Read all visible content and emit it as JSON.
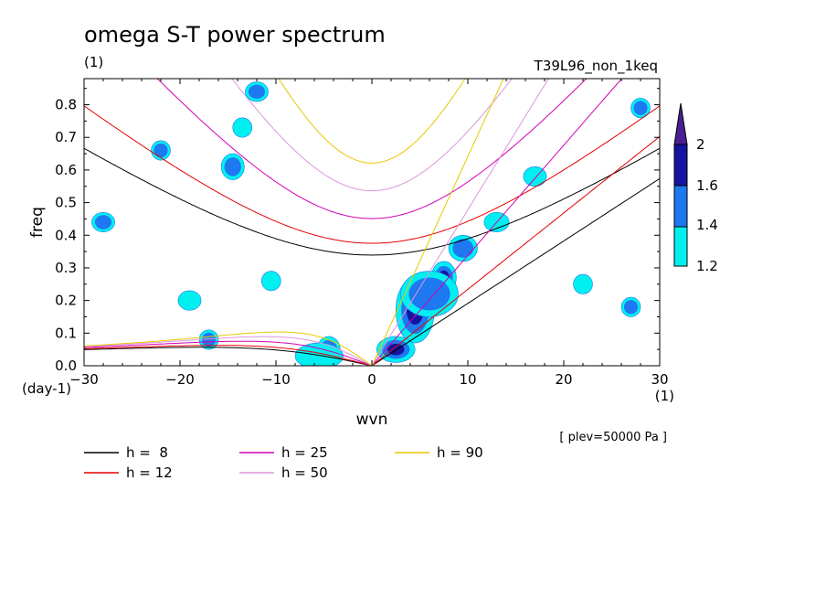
{
  "chart_data": {
    "type": "heatmap",
    "title": "omega S-T power spectrum",
    "subtitle_left": "(1)",
    "subtitle_right": "T39L96_non_1keq",
    "xlabel": "wvn",
    "xunit": "(1)",
    "ylabel": "freq",
    "yunit": "(day-1)",
    "xlim": [
      -30,
      30
    ],
    "ylim": [
      0,
      0.88
    ],
    "xticks": [
      -30,
      -20,
      -10,
      0,
      10,
      20,
      30
    ],
    "yticks": [
      0.0,
      0.1,
      0.2,
      0.3,
      0.4,
      0.5,
      0.6,
      0.7,
      0.8
    ],
    "annotation": "[ plev=50000 Pa ]",
    "colorbar": {
      "levels": [
        1.2,
        1.4,
        1.6,
        2
      ],
      "colors": [
        "#00f0f0",
        "#1e78f0",
        "#1414a0",
        "#4b1e91"
      ]
    },
    "dispersion_curves": [
      {
        "label": "h =  8",
        "h": 8,
        "color": "#000000"
      },
      {
        "label": "h = 12",
        "h": 12,
        "color": "#e60000"
      },
      {
        "label": "h = 25",
        "h": 25,
        "color": "#d200b4"
      },
      {
        "label": "h = 50",
        "h": 50,
        "color": "#dc96dc"
      },
      {
        "label": "h = 90",
        "h": 90,
        "color": "#e6c800"
      }
    ],
    "power_blobs": [
      {
        "x": 4.5,
        "y": 0.17,
        "rx": 2.0,
        "ry": 0.1,
        "level": 4
      },
      {
        "x": 7.5,
        "y": 0.27,
        "rx": 1.3,
        "ry": 0.05,
        "level": 3
      },
      {
        "x": 2.5,
        "y": 0.05,
        "rx": 2.0,
        "ry": 0.04,
        "level": 3
      },
      {
        "x": 6.0,
        "y": 0.22,
        "rx": 3.0,
        "ry": 0.07,
        "level": 2
      },
      {
        "x": 9.5,
        "y": 0.36,
        "rx": 1.5,
        "ry": 0.04,
        "level": 2
      },
      {
        "x": 13.0,
        "y": 0.44,
        "rx": 1.3,
        "ry": 0.03,
        "level": 1
      },
      {
        "x": 17.0,
        "y": 0.58,
        "rx": 1.2,
        "ry": 0.03,
        "level": 1
      },
      {
        "x": -4.5,
        "y": 0.05,
        "rx": 1.2,
        "ry": 0.04,
        "level": 3
      },
      {
        "x": -5.5,
        "y": 0.03,
        "rx": 2.5,
        "ry": 0.04,
        "level": 1
      },
      {
        "x": -17.0,
        "y": 0.08,
        "rx": 1.0,
        "ry": 0.03,
        "level": 2
      },
      {
        "x": -14.5,
        "y": 0.61,
        "rx": 1.2,
        "ry": 0.04,
        "level": 2
      },
      {
        "x": -22.0,
        "y": 0.66,
        "rx": 1.0,
        "ry": 0.03,
        "level": 2
      },
      {
        "x": -13.5,
        "y": 0.73,
        "rx": 1.0,
        "ry": 0.03,
        "level": 1
      },
      {
        "x": -10.5,
        "y": 0.26,
        "rx": 1.0,
        "ry": 0.03,
        "level": 1
      },
      {
        "x": -19.0,
        "y": 0.2,
        "rx": 1.2,
        "ry": 0.03,
        "level": 1
      },
      {
        "x": 27.0,
        "y": 0.18,
        "rx": 1.0,
        "ry": 0.03,
        "level": 2
      },
      {
        "x": 28.0,
        "y": 0.79,
        "rx": 1.0,
        "ry": 0.03,
        "level": 2
      },
      {
        "x": -28.0,
        "y": 0.44,
        "rx": 1.2,
        "ry": 0.03,
        "level": 2
      },
      {
        "x": -12.0,
        "y": 0.84,
        "rx": 1.2,
        "ry": 0.03,
        "level": 2
      },
      {
        "x": 22.0,
        "y": 0.25,
        "rx": 1.0,
        "ry": 0.03,
        "level": 1
      }
    ]
  },
  "legend_entries": [
    "h =  8",
    "h = 12",
    "h = 25",
    "h = 50",
    "h = 90"
  ]
}
